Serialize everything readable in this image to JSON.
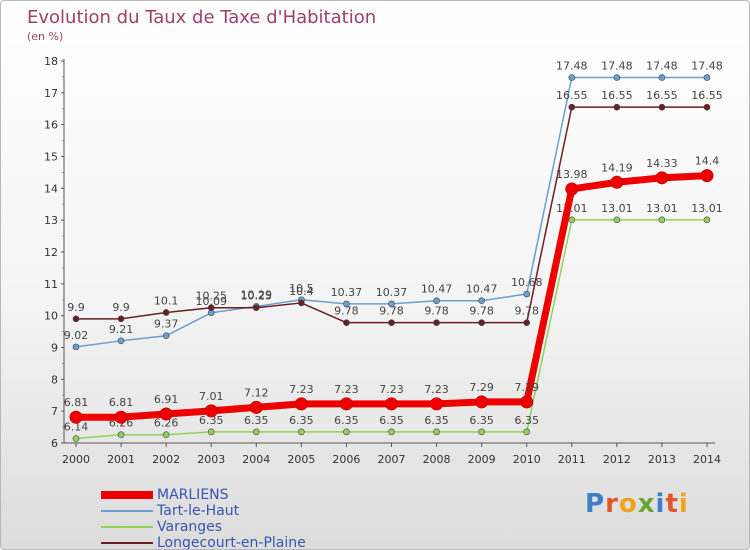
{
  "header": {
    "title": "Evolution du Taux de Taxe d'Habitation",
    "subtitle": "(en %)"
  },
  "logo": {
    "text": "Proxiti",
    "letter_colors": [
      "#3d7fc9",
      "#e2562c",
      "#f0a21c",
      "#66a832",
      "#3d7fc9",
      "#e2562c",
      "#f0a21c"
    ]
  },
  "chart_data": {
    "type": "line",
    "title": "Evolution du Taux de Taxe d'Habitation",
    "ylabel": "(en %)",
    "xlabel": "",
    "x": [
      "2000",
      "2001",
      "2002",
      "2003",
      "2004",
      "2005",
      "2006",
      "2007",
      "2008",
      "2009",
      "2010",
      "2011",
      "2012",
      "2013",
      "2014"
    ],
    "ylim": [
      6,
      18
    ],
    "yticks": [
      "6",
      "7",
      "8",
      "9",
      "10",
      "11",
      "12",
      "13",
      "14",
      "15",
      "16",
      "17",
      "18"
    ],
    "grid": false,
    "legend_position": "bottom-left",
    "series": [
      {
        "name": "Tart-le-Haut",
        "color": "#6a9fd0",
        "values": [
          9.02,
          9.21,
          9.37,
          10.09,
          10.29,
          10.5,
          10.37,
          10.37,
          10.47,
          10.47,
          10.68,
          17.48,
          17.48,
          17.48,
          17.48
        ],
        "labels": [
          "9.02",
          "9.21",
          "9.37",
          "10.09",
          "10.29",
          "10.5",
          "10.37",
          "10.37",
          "10.47",
          "10.47",
          "10.68",
          "17.48",
          "17.48",
          "17.48",
          "17.48"
        ]
      },
      {
        "name": "Longecourt-en-Plaine",
        "color": "#6b1e24",
        "values": [
          9.9,
          9.9,
          10.1,
          10.25,
          10.25,
          10.4,
          9.78,
          9.78,
          9.78,
          9.78,
          9.78,
          16.55,
          16.55,
          16.55,
          16.55
        ],
        "labels": [
          "9.9",
          "9.9",
          "10.1",
          "10.25",
          "10.25",
          "10.4",
          "9.78",
          "9.78",
          "9.78",
          "9.78",
          "9.78",
          "16.55",
          "16.55",
          "16.55",
          "16.55"
        ]
      },
      {
        "name": "Varanges",
        "color": "#8fd35a",
        "values": [
          6.14,
          6.26,
          6.26,
          6.35,
          6.35,
          6.35,
          6.35,
          6.35,
          6.35,
          6.35,
          6.35,
          13.01,
          13.01,
          13.01,
          13.01
        ],
        "labels": [
          "6.14",
          "6.26",
          "6.26",
          "6.35",
          "6.35",
          "6.35",
          "6.35",
          "6.35",
          "6.35",
          "6.35",
          "6.35",
          "13.01",
          "13.01",
          "13.01",
          "13.01"
        ]
      },
      {
        "name": "MARLIENS",
        "color": "#ee0000",
        "values": [
          6.81,
          6.81,
          6.91,
          7.01,
          7.12,
          7.23,
          7.23,
          7.23,
          7.23,
          7.29,
          7.29,
          13.98,
          14.19,
          14.33,
          14.4
        ],
        "labels": [
          "6.81",
          "6.81",
          "6.91",
          "7.01",
          "7.12",
          "7.23",
          "7.23",
          "7.23",
          "7.23",
          "7.29",
          "7.29",
          "13.98",
          "14.19",
          "14.33",
          "14.4"
        ]
      }
    ],
    "legend": [
      {
        "name": "MARLIENS",
        "color": "#ee0000"
      },
      {
        "name": "Tart-le-Haut",
        "color": "#6a9fd0"
      },
      {
        "name": "Varanges",
        "color": "#8fd35a"
      },
      {
        "name": "Longecourt-en-Plaine",
        "color": "#6b1e24"
      }
    ]
  }
}
